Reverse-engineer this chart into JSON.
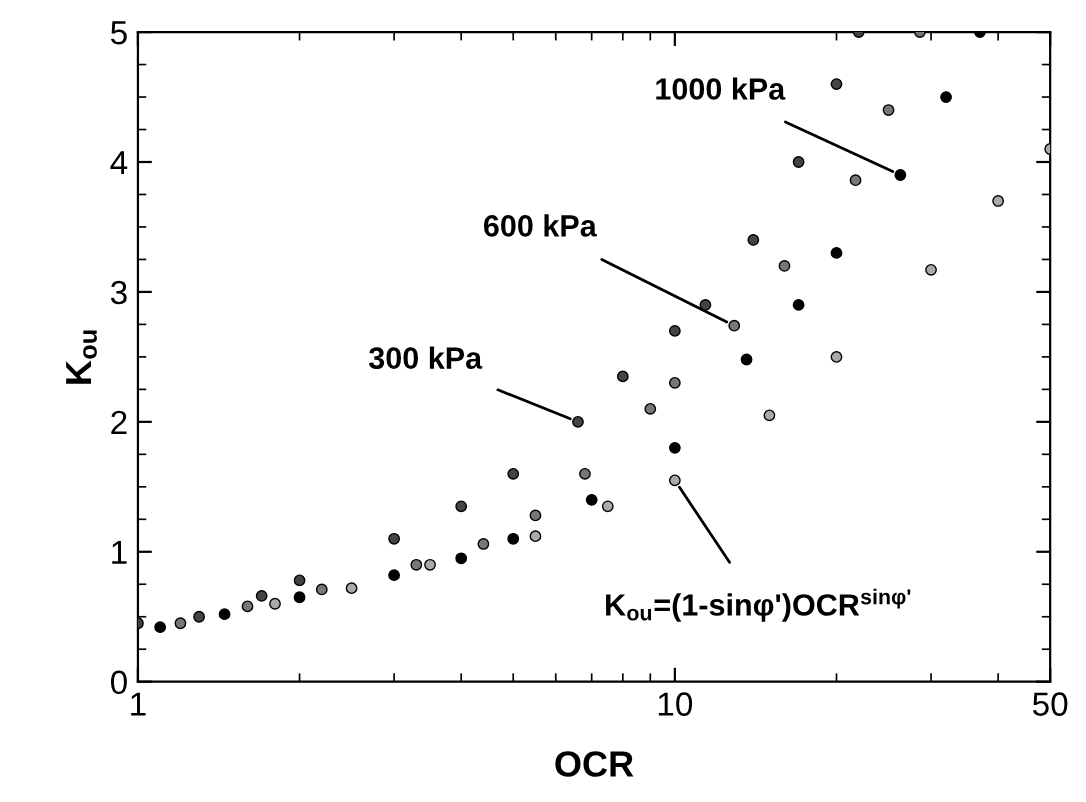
{
  "chart_data": {
    "type": "scatter",
    "xlabel": "OCR",
    "ylabel": "K$_{ou}$",
    "log": "x",
    "xlim": [
      1,
      50
    ],
    "xticks": [
      1,
      10,
      50
    ],
    "ylim": [
      0,
      5
    ],
    "yticks": [
      0,
      1,
      2,
      3,
      4,
      5
    ],
    "grid": false,
    "legend": false,
    "marker": "circle",
    "series": [
      {
        "color": "#444444",
        "x": [
          1,
          1.3,
          1.7,
          2,
          3,
          4,
          5,
          6.6,
          8,
          10,
          11.4,
          14,
          17,
          20,
          22
        ],
        "values": [
          0.45,
          0.5,
          0.66,
          0.78,
          1.1,
          1.35,
          1.6,
          2.0,
          2.35,
          2.7,
          2.9,
          3.4,
          4.0,
          4.6,
          5.0
        ]
      },
      {
        "color": "#777777",
        "x": [
          1.2,
          1.6,
          2.2,
          3.3,
          4.4,
          5.5,
          6.8,
          9,
          10,
          12.9,
          16,
          21.7,
          25,
          28.6
        ],
        "values": [
          0.45,
          0.58,
          0.71,
          0.9,
          1.06,
          1.28,
          1.6,
          2.1,
          2.3,
          2.74,
          3.2,
          3.86,
          4.4,
          5.0
        ]
      },
      {
        "color": "#000000",
        "x": [
          1.1,
          1.45,
          2,
          3,
          4,
          5,
          7,
          10,
          13.6,
          17,
          20,
          26.3,
          32,
          37
        ],
        "values": [
          0.42,
          0.52,
          0.65,
          0.82,
          0.95,
          1.1,
          1.4,
          1.8,
          2.48,
          2.9,
          3.3,
          3.9,
          4.5,
          5.0
        ]
      },
      {
        "color": "#aaaaaa",
        "x": [
          1.8,
          2.5,
          3.5,
          5.5,
          7.5,
          10,
          15,
          20,
          30,
          40,
          50
        ],
        "values": [
          0.6,
          0.72,
          0.9,
          1.12,
          1.35,
          1.55,
          2.05,
          2.5,
          3.17,
          3.7,
          4.1
        ]
      }
    ],
    "annotations": [
      {
        "text": "300 kPa",
        "x": 6.6,
        "y": 2.0
      },
      {
        "text": "600 kPa",
        "x": 12.9,
        "y": 2.74
      },
      {
        "text": "1000 kPa",
        "x": 26.3,
        "y": 3.9
      },
      {
        "text": "K$_{ou}$=(1-sinφ')OCR$^{sinφ'}$",
        "x": 10,
        "y": 1.55
      }
    ]
  }
}
